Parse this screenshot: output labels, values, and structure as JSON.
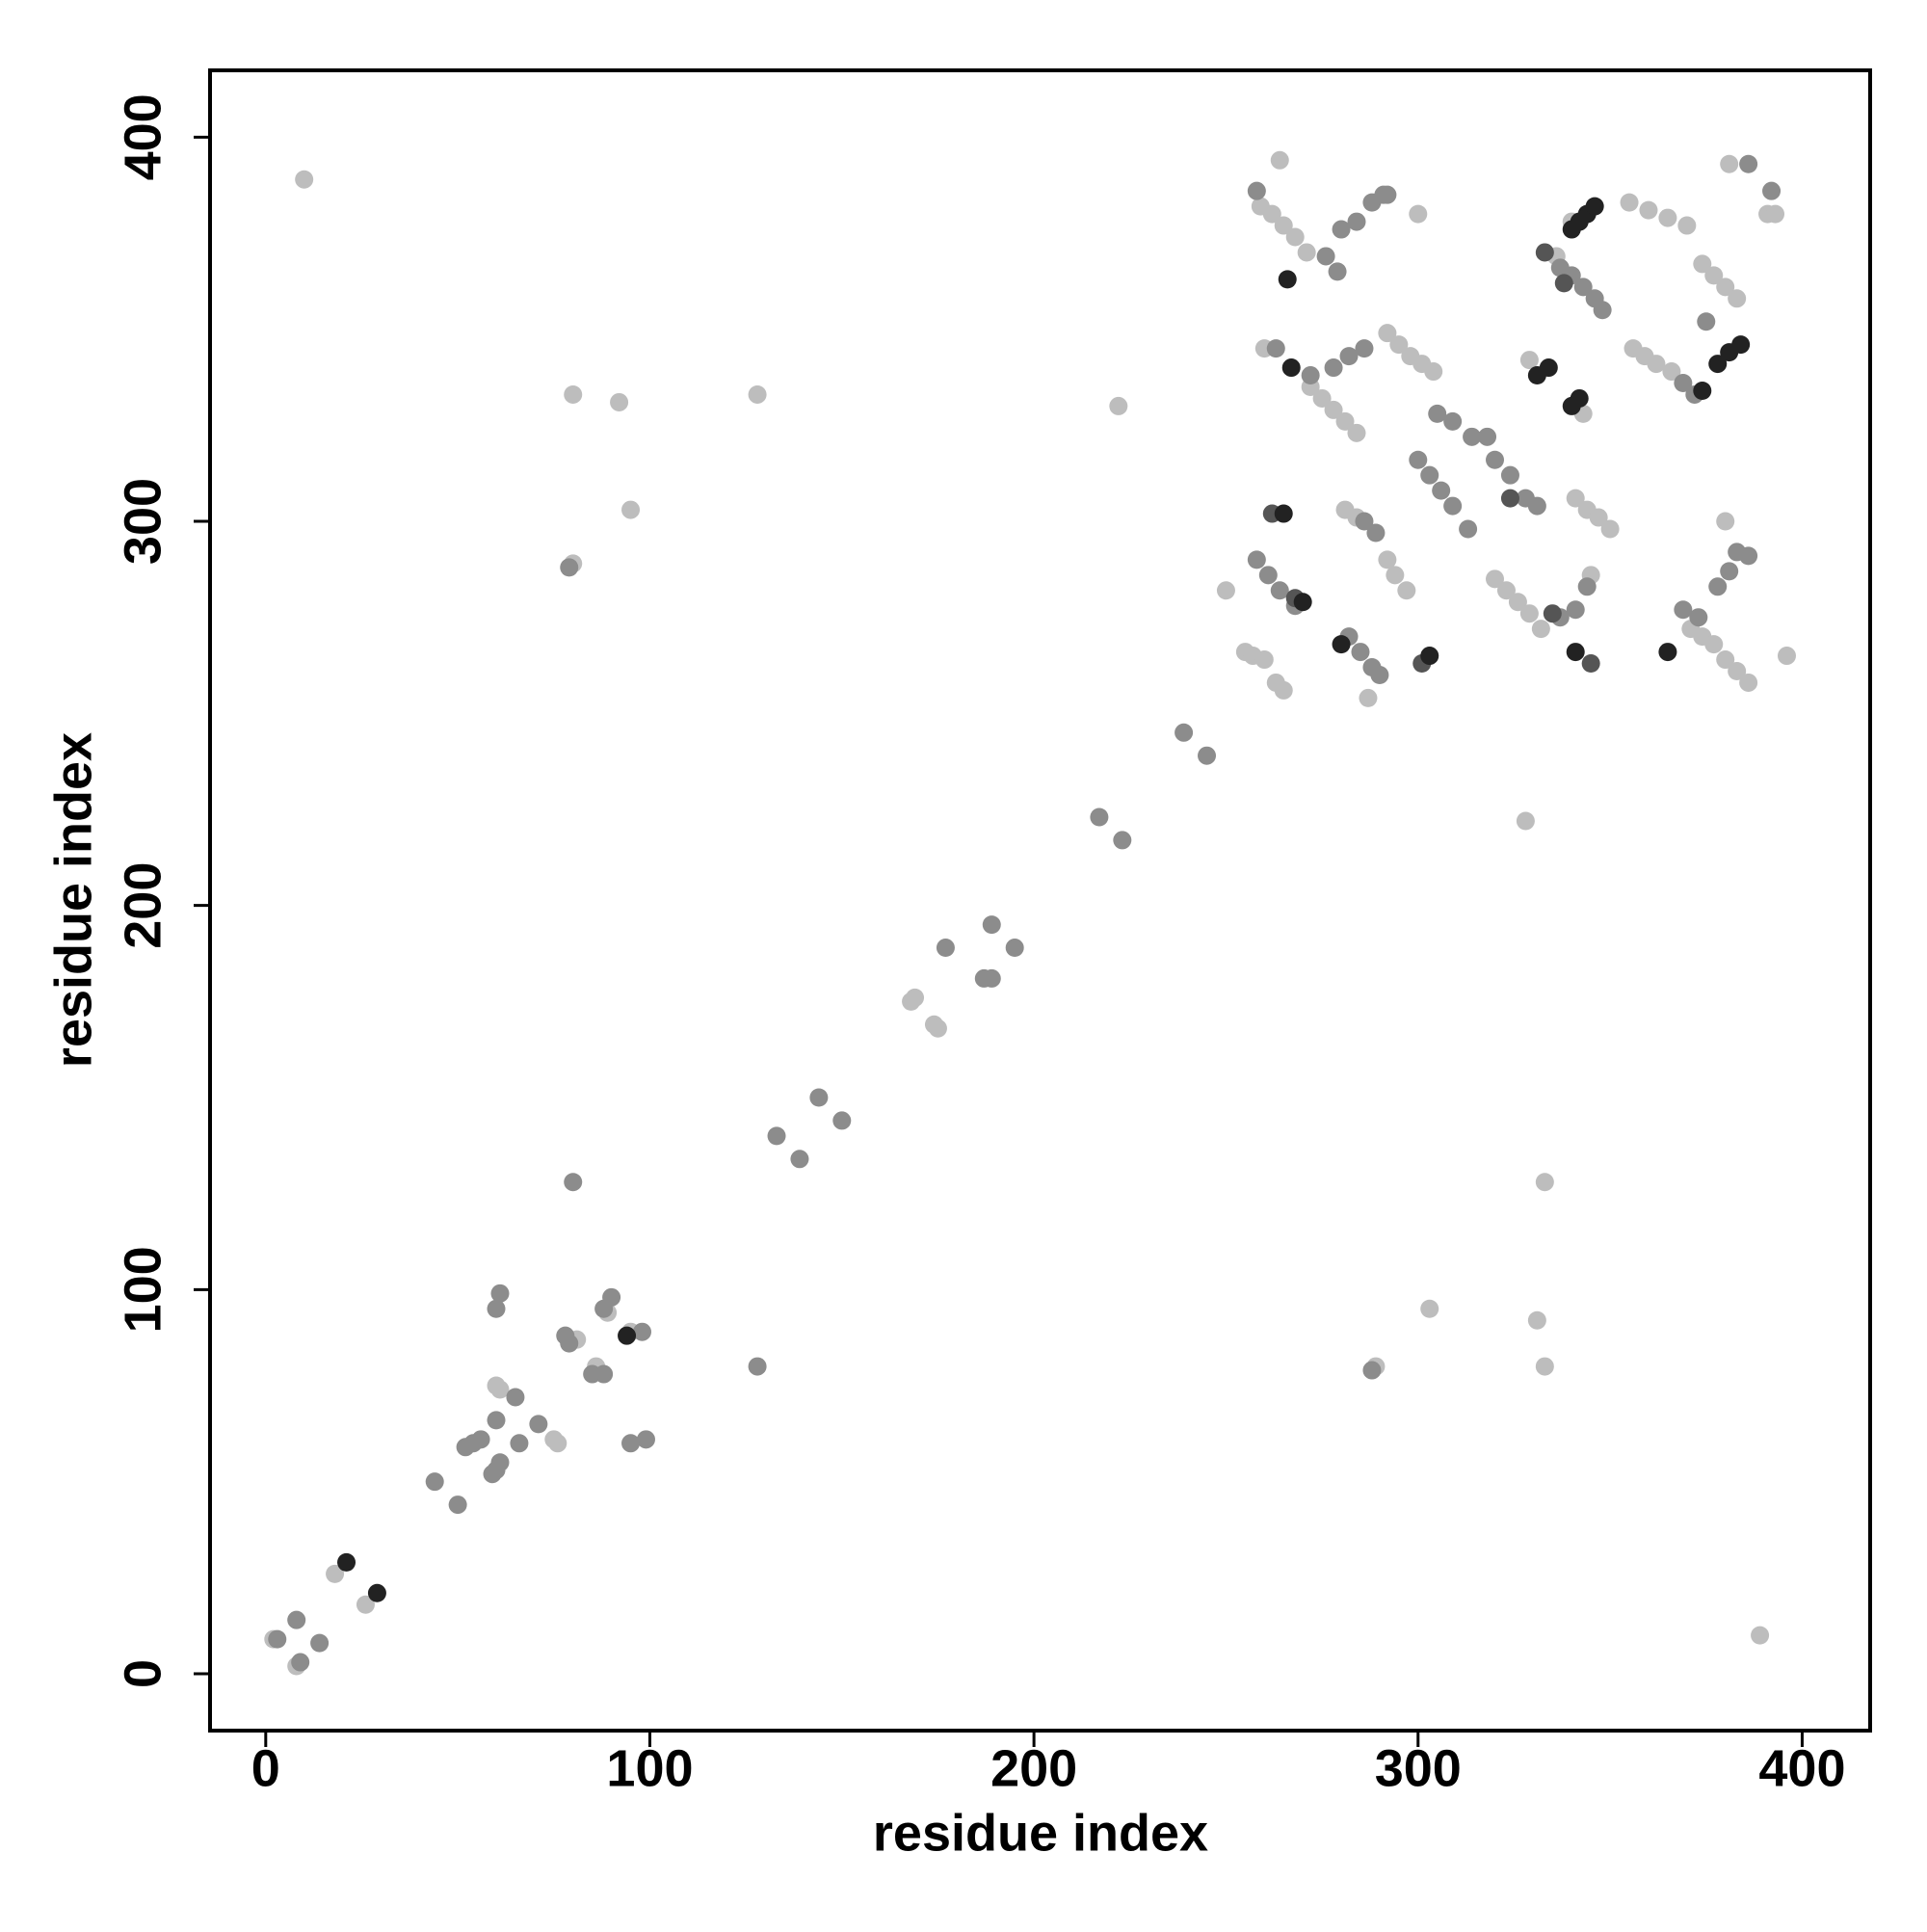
{
  "chart_data": {
    "type": "scatter",
    "xlabel": "residue index",
    "ylabel": "residue index",
    "xlim": [
      -14.5,
      417.7
    ],
    "ylim": [
      -14.8,
      417.4
    ],
    "xticks": [
      0,
      100,
      200,
      300,
      400
    ],
    "yticks": [
      0,
      100,
      200,
      300,
      400
    ],
    "series": [
      {
        "color": "#bdbdbd",
        "x": [
          2,
          8,
          18,
          26,
          60,
          61,
          75,
          76,
          81,
          86,
          89,
          95,
          80,
          92,
          95,
          80,
          128,
          10,
          289,
          303,
          331,
          333,
          333,
          389,
          222,
          328,
          168,
          169,
          174,
          175,
          259,
          262,
          265,
          268,
          271,
          264,
          300,
          355,
          360,
          365,
          370,
          374,
          377,
          380,
          383,
          381,
          391,
          393,
          260,
          272,
          275,
          278,
          281,
          284,
          292,
          295,
          298,
          301,
          304,
          356,
          359,
          362,
          366,
          329,
          343,
          341,
          344,
          347,
          350,
          281,
          284,
          292,
          294,
          297,
          255,
          257,
          260,
          263,
          265,
          320,
          323,
          326,
          329,
          332,
          345,
          371,
          374,
          377,
          380,
          383,
          386,
          380,
          396,
          340,
          336,
          287,
          250
        ],
        "y": [
          9,
          2,
          26,
          18,
          75,
          74,
          61,
          60,
          87,
          80,
          94,
          89,
          333,
          331,
          303,
          289,
          333,
          389,
          80,
          95,
          92,
          80,
          128,
          10,
          330,
          222,
          175,
          176,
          169,
          168,
          382,
          380,
          377,
          374,
          370,
          394,
          380,
          383,
          381,
          379,
          377,
          367,
          364,
          361,
          358,
          393,
          380,
          380,
          345,
          335,
          332,
          329,
          326,
          323,
          349,
          346,
          343,
          341,
          339,
          345,
          343,
          341,
          339,
          342,
          328,
          306,
          303,
          301,
          298,
          303,
          301,
          290,
          286,
          282,
          266,
          265,
          264,
          258,
          256,
          285,
          282,
          279,
          276,
          272,
          286,
          272,
          270,
          268,
          264,
          261,
          258,
          300,
          265,
          378,
          369,
          254,
          282
        ]
      },
      {
        "color": "#8c8c8c",
        "x": [
          3,
          8,
          14,
          9,
          44,
          50,
          52,
          54,
          56,
          59,
          60,
          61,
          60,
          65,
          66,
          71,
          60,
          61,
          78,
          79,
          85,
          88,
          88,
          90,
          95,
          99,
          98,
          80,
          128,
          79,
          288,
          133,
          139,
          144,
          150,
          177,
          187,
          189,
          189,
          195,
          217,
          223,
          239,
          245,
          258,
          276,
          279,
          280,
          284,
          288,
          291,
          263,
          278,
          282,
          286,
          272,
          337,
          340,
          343,
          346,
          348,
          386,
          392,
          300,
          303,
          306,
          309,
          313,
          305,
          309,
          314,
          318,
          320,
          324,
          328,
          331,
          286,
          289,
          258,
          261,
          264,
          268,
          282,
          285,
          288,
          290,
          337,
          341,
          344,
          369,
          373,
          383,
          386,
          378,
          381,
          375,
          369,
          372,
          292
        ],
        "y": [
          9,
          14,
          8,
          3,
          50,
          44,
          59,
          60,
          61,
          52,
          53,
          55,
          66,
          72,
          60,
          65,
          95,
          99,
          88,
          86,
          78,
          78,
          95,
          98,
          60,
          61,
          89,
          128,
          80,
          288,
          79,
          140,
          134,
          150,
          144,
          189,
          181,
          181,
          195,
          189,
          223,
          217,
          245,
          239,
          386,
          369,
          365,
          376,
          378,
          383,
          385,
          345,
          340,
          343,
          345,
          338,
          366,
          364,
          361,
          358,
          355,
          393,
          386,
          316,
          312,
          308,
          304,
          298,
          328,
          326,
          322,
          322,
          316,
          312,
          306,
          304,
          300,
          297,
          290,
          286,
          282,
          278,
          270,
          266,
          262,
          260,
          275,
          277,
          283,
          277,
          275,
          292,
          291,
          283,
          287,
          352,
          336,
          333,
          385
        ]
      },
      {
        "color": "#555555",
        "x": [
          262,
          268,
          301,
          324,
          338,
          333,
          335,
          345
        ],
        "y": [
          302,
          280,
          263,
          306,
          362,
          370,
          276,
          263
        ]
      },
      {
        "color": "#222222",
        "x": [
          21,
          29,
          94,
          266,
          267,
          331,
          334,
          340,
          342,
          340,
          342,
          344,
          346,
          378,
          381,
          384,
          265,
          270,
          280,
          303,
          341,
          365,
          374
        ],
        "y": [
          29,
          21,
          88,
          363,
          340,
          338,
          340,
          330,
          332,
          376,
          378,
          380,
          382,
          341,
          344,
          346,
          302,
          279,
          268,
          265,
          266,
          266,
          334
        ]
      }
    ]
  }
}
